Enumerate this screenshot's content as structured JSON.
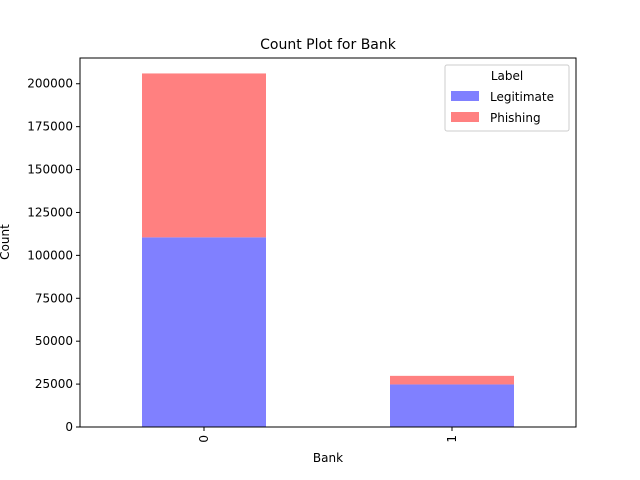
{
  "chart_data": {
    "type": "bar",
    "stacked": true,
    "title": "Count Plot for Bank",
    "xlabel": "Bank",
    "ylabel": "Count",
    "categories": [
      "0",
      "1"
    ],
    "series": [
      {
        "name": "Legitimate",
        "values": [
          110500,
          24800
        ],
        "color": "#8080ff"
      },
      {
        "name": "Phishing",
        "values": [
          95500,
          5000
        ],
        "color": "#ff8080"
      }
    ],
    "ylim": [
      0,
      215000
    ],
    "yticks": [
      0,
      25000,
      50000,
      75000,
      100000,
      125000,
      150000,
      175000,
      200000
    ],
    "grid": false,
    "legend": {
      "title": "Label",
      "position": "top-right"
    }
  }
}
